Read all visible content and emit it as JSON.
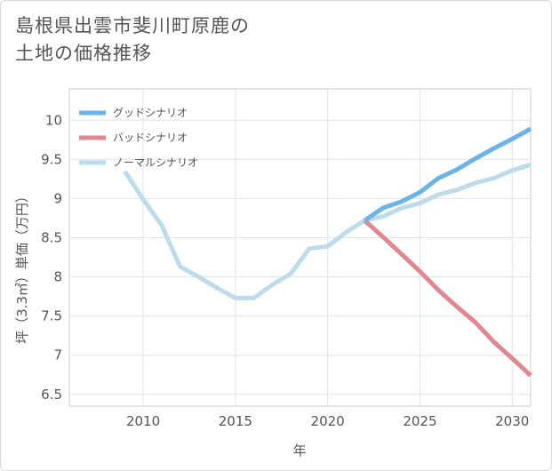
{
  "title_line1": "島根県出雲市斐川町原鹿の",
  "title_line2": "土地の価格推移",
  "chart_data": {
    "type": "line",
    "xlabel": "年",
    "ylabel": "坪（3.3㎡）単価（万円）",
    "xlim": [
      2006,
      2031
    ],
    "ylim": [
      6.35,
      10.4
    ],
    "x_ticks": [
      2010,
      2015,
      2020,
      2025,
      2030
    ],
    "y_ticks": [
      6.5,
      7,
      7.5,
      8,
      8.5,
      9,
      9.5,
      10
    ],
    "grid": true,
    "legend_position": "top-left",
    "series": [
      {
        "name": "グッドシナリオ",
        "color": "#6cb4e8",
        "x": [
          2022,
          2023,
          2024,
          2025,
          2026,
          2027,
          2028,
          2029,
          2030,
          2031
        ],
        "y": [
          8.72,
          8.88,
          8.96,
          9.08,
          9.26,
          9.37,
          9.51,
          9.64,
          9.76,
          9.89
        ]
      },
      {
        "name": "バッドシナリオ",
        "color": "#e08890",
        "x": [
          2022,
          2023,
          2024,
          2025,
          2026,
          2027,
          2028,
          2029,
          2030,
          2031
        ],
        "y": [
          8.72,
          8.51,
          8.29,
          8.07,
          7.83,
          7.62,
          7.42,
          7.17,
          6.96,
          6.74
        ]
      },
      {
        "name": "ノーマルシナリオ",
        "color": "#bcdcec",
        "x": [
          2009,
          2010,
          2011,
          2012,
          2013,
          2014,
          2015,
          2016,
          2017,
          2018,
          2019,
          2020,
          2021,
          2022,
          2023,
          2024,
          2025,
          2026,
          2027,
          2028,
          2029,
          2030,
          2031
        ],
        "y": [
          9.35,
          8.99,
          8.66,
          8.13,
          8.0,
          7.86,
          7.73,
          7.73,
          7.9,
          8.04,
          8.36,
          8.39,
          8.57,
          8.72,
          8.77,
          8.88,
          8.94,
          9.05,
          9.11,
          9.2,
          9.26,
          9.36,
          9.43
        ]
      }
    ]
  }
}
